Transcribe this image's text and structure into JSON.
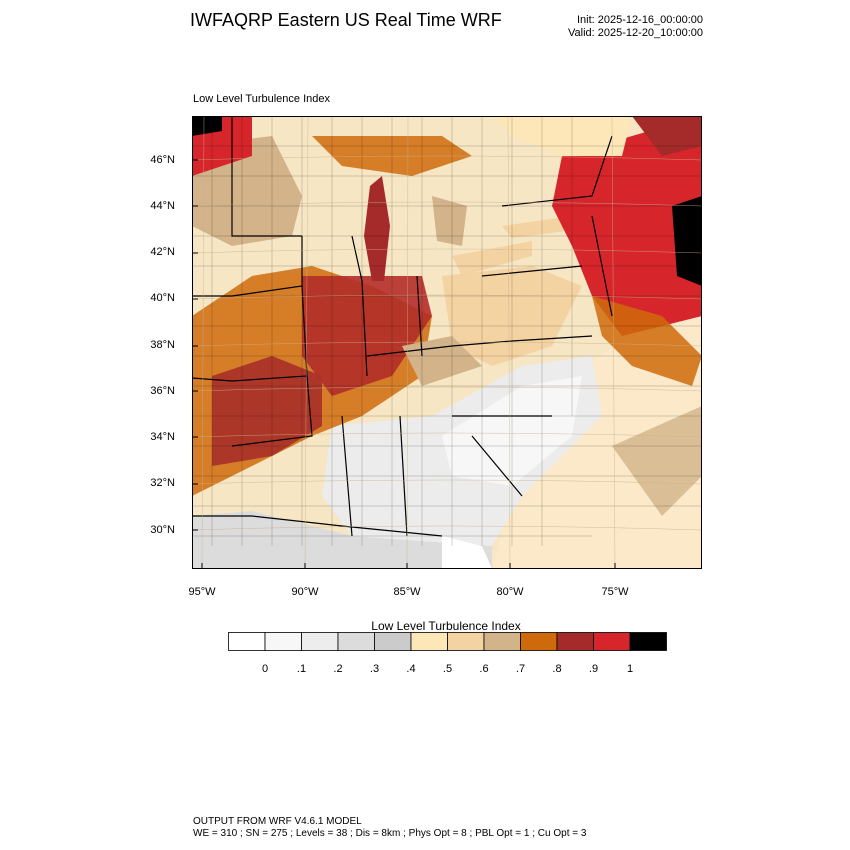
{
  "header": {
    "title": "IWFAQRP Eastern US Real Time WRF",
    "init_label": "Init: 2025-12-16_00:00:00",
    "valid_label": "Valid: 2025-12-20_10:00:00"
  },
  "map": {
    "field_title": "Low Level Turbulence Index",
    "lat_labels": [
      "46°N",
      "44°N",
      "42°N",
      "40°N",
      "38°N",
      "36°N",
      "34°N",
      "32°N",
      "30°N"
    ],
    "lon_labels": [
      "95°W",
      "90°W",
      "85°W",
      "80°W",
      "75°W"
    ]
  },
  "colorbar": {
    "title": "Low Level Turbulence Index",
    "colors": [
      "#ffffff",
      "#f7f7f7",
      "#ededed",
      "#dcdcdc",
      "#cbcbcb",
      "#fde7b8",
      "#f4d3a3",
      "#d2b38a",
      "#cf6a0c",
      "#a52a2a",
      "#d7262b",
      "#000000"
    ],
    "tick_labels": [
      "0",
      ".1",
      ".2",
      ".3",
      ".4",
      ".5",
      ".6",
      ".7",
      ".8",
      ".9",
      "1"
    ]
  },
  "footer": {
    "line1": "OUTPUT FROM WRF V4.6.1 MODEL",
    "line2": "WE = 310 ; SN = 275 ; Levels = 38 ; Dis = 8km ; Phys Opt = 8 ; PBL Opt = 1 ; Cu Opt = 3"
  }
}
